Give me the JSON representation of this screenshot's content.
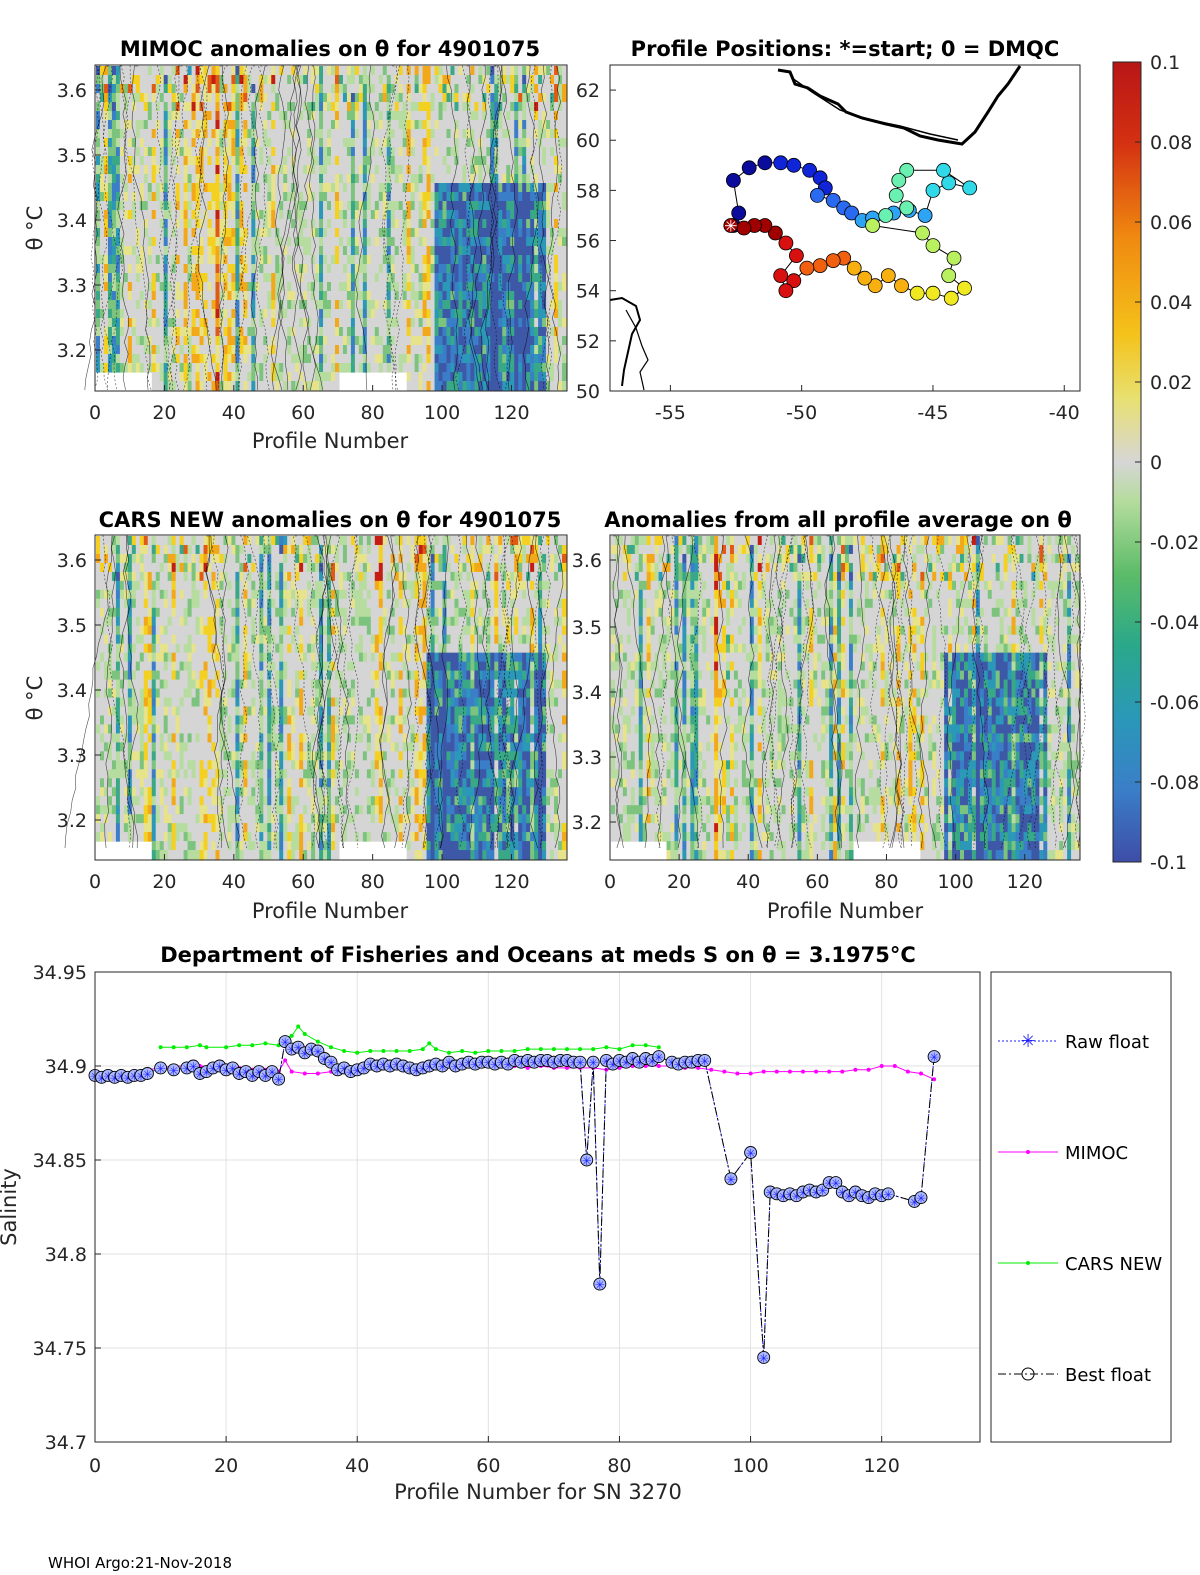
{
  "footer": "WHOI Argo:21-Nov-2018",
  "colors": {
    "mimoc": "#ff00ff",
    "cars": "#00ee00",
    "raw": "#1f1fff",
    "best": "#000000",
    "best_fill": "#aab8ff"
  },
  "colorbar": {
    "ticks": [
      "0.1",
      "0.08",
      "0.06",
      "0.04",
      "0.02",
      "0",
      "-0.02",
      "-0.04",
      "-0.06",
      "-0.08",
      "-0.1"
    ],
    "stops": [
      "#3e4da8",
      "#3a7ec8",
      "#2a98b8",
      "#2aa88a",
      "#5cbc68",
      "#b4dc9c",
      "#d6d6d6",
      "#e8e070",
      "#f4c21a",
      "#f08a10",
      "#d43012",
      "#b81616"
    ]
  },
  "panel_mimoc": {
    "title": "MIMOC anomalies on θ  for 4901075",
    "ylabel": "θ °C",
    "xlabel": "Profile Number",
    "yticks": [
      "3.6",
      "3.5",
      "3.4",
      "3.3",
      "3.2"
    ],
    "xticks": [
      "0",
      "20",
      "40",
      "60",
      "80",
      "100",
      "120"
    ]
  },
  "panel_cars": {
    "title": "CARS NEW anomalies on θ for 4901075",
    "ylabel": "θ °C",
    "xlabel": "Profile Number",
    "yticks": [
      "3.6",
      "3.5",
      "3.4",
      "3.3",
      "3.2"
    ],
    "xticks": [
      "0",
      "20",
      "40",
      "60",
      "80",
      "100",
      "120"
    ]
  },
  "panel_avg": {
    "title": "Anomalies from all profile average on θ",
    "xlabel": "Profile Number",
    "yticks": [
      "3.6",
      "3.5",
      "3.4",
      "3.3",
      "3.2"
    ],
    "xticks": [
      "0",
      "20",
      "40",
      "60",
      "80",
      "100",
      "120"
    ]
  },
  "panel_map": {
    "title": "Profile Positions: *=start; 0 = DMQC",
    "yticks": [
      "62",
      "60",
      "58",
      "56",
      "54",
      "52",
      "50"
    ],
    "xticks": [
      "-55",
      "-50",
      "-45",
      "-40"
    ],
    "track": [
      [
        -52.6,
        56.6
      ],
      [
        -52.4,
        57.1
      ],
      [
        -52.6,
        58.4
      ],
      [
        -52.0,
        58.9
      ],
      [
        -51.4,
        59.1
      ],
      [
        -50.8,
        59.1
      ],
      [
        -50.3,
        59.0
      ],
      [
        -49.7,
        58.8
      ],
      [
        -49.3,
        58.5
      ],
      [
        -49.1,
        58.1
      ],
      [
        -49.4,
        57.8
      ],
      [
        -48.8,
        57.6
      ],
      [
        -48.4,
        57.3
      ],
      [
        -48.1,
        57.1
      ],
      [
        -47.7,
        56.8
      ],
      [
        -47.3,
        56.9
      ],
      [
        -46.5,
        57.1
      ],
      [
        -45.9,
        57.2
      ],
      [
        -45.3,
        57.0
      ],
      [
        -45.0,
        58.0
      ],
      [
        -44.4,
        58.3
      ],
      [
        -43.6,
        58.1
      ],
      [
        -44.6,
        58.8
      ],
      [
        -46.0,
        58.8
      ],
      [
        -46.3,
        58.4
      ],
      [
        -46.4,
        57.8
      ],
      [
        -46.0,
        57.3
      ],
      [
        -46.8,
        57.0
      ],
      [
        -47.3,
        56.6
      ],
      [
        -45.4,
        56.3
      ],
      [
        -45.0,
        55.8
      ],
      [
        -44.2,
        55.3
      ],
      [
        -44.4,
        54.6
      ],
      [
        -43.8,
        54.1
      ],
      [
        -44.3,
        53.7
      ],
      [
        -45.0,
        53.9
      ],
      [
        -45.6,
        53.9
      ],
      [
        -46.2,
        54.2
      ],
      [
        -46.7,
        54.6
      ],
      [
        -47.2,
        54.2
      ],
      [
        -47.6,
        54.5
      ],
      [
        -48.0,
        54.9
      ],
      [
        -48.4,
        55.3
      ],
      [
        -48.8,
        55.2
      ],
      [
        -49.3,
        55.0
      ],
      [
        -49.8,
        54.9
      ],
      [
        -50.3,
        54.4
      ],
      [
        -50.6,
        54.0
      ],
      [
        -50.8,
        54.6
      ],
      [
        -50.2,
        55.4
      ],
      [
        -50.6,
        55.9
      ],
      [
        -51.0,
        56.3
      ],
      [
        -51.4,
        56.6
      ],
      [
        -51.8,
        56.6
      ],
      [
        -52.2,
        56.5
      ],
      [
        -52.7,
        56.6
      ]
    ]
  },
  "chart_data": {
    "type": "line",
    "title": "Department of Fisheries and Oceans at meds S on θ = 3.1975°C",
    "xlabel": "Profile Number for SN 3270",
    "ylabel": "Salinity",
    "xlim": [
      0,
      135
    ],
    "ylim": [
      34.7,
      34.95
    ],
    "xticks": [
      "0",
      "20",
      "40",
      "60",
      "80",
      "100",
      "120"
    ],
    "yticks": [
      "34.95",
      "34.9",
      "34.85",
      "34.8",
      "34.75",
      "34.7"
    ],
    "legend": [
      "Raw float",
      "MIMOC",
      "CARS NEW",
      "Best float"
    ],
    "series": [
      {
        "name": "MIMOC",
        "x": [
          0,
          2,
          4,
          6,
          8,
          10,
          12,
          14,
          16,
          18,
          20,
          22,
          24,
          26,
          28,
          29,
          30,
          32,
          34,
          36,
          38,
          40,
          42,
          44,
          46,
          48,
          50,
          52,
          54,
          56,
          58,
          60,
          62,
          64,
          66,
          68,
          70,
          72,
          74,
          76,
          78,
          80,
          82,
          84,
          86,
          88,
          90,
          92,
          94,
          96,
          98,
          100,
          102,
          104,
          106,
          108,
          110,
          112,
          114,
          116,
          118,
          120,
          122,
          124,
          126,
          128
        ],
        "values": [
          34.896,
          34.896,
          34.897,
          34.897,
          34.898,
          34.899,
          34.9,
          34.9,
          34.9,
          34.9,
          34.9,
          34.899,
          34.898,
          34.898,
          34.897,
          34.903,
          34.897,
          34.896,
          34.896,
          34.897,
          34.898,
          34.899,
          34.899,
          34.9,
          34.9,
          34.9,
          34.899,
          34.9,
          34.9,
          34.9,
          34.901,
          34.9,
          34.9,
          34.9,
          34.899,
          34.9,
          34.899,
          34.899,
          34.899,
          34.899,
          34.898,
          34.899,
          34.9,
          34.9,
          34.9,
          34.9,
          34.899,
          34.899,
          34.898,
          34.897,
          34.896,
          34.896,
          34.897,
          34.897,
          34.897,
          34.897,
          34.897,
          34.897,
          34.897,
          34.898,
          34.898,
          34.9,
          34.9,
          34.897,
          34.896,
          34.893
        ]
      },
      {
        "name": "CARS NEW",
        "x": [
          10,
          12,
          14,
          16,
          17,
          20,
          22,
          24,
          26,
          28,
          29,
          30,
          31,
          32,
          34,
          36,
          38,
          40,
          42,
          44,
          46,
          48,
          50,
          51,
          52,
          54,
          56,
          58,
          60,
          62,
          64,
          66,
          68,
          70,
          72,
          74,
          76,
          78,
          80,
          82,
          84,
          86
        ],
        "values": [
          34.91,
          34.91,
          34.91,
          34.911,
          34.91,
          34.91,
          34.911,
          34.911,
          34.912,
          34.911,
          34.915,
          34.916,
          34.921,
          34.917,
          34.913,
          34.91,
          34.908,
          34.907,
          34.908,
          34.908,
          34.908,
          34.908,
          34.909,
          34.912,
          34.909,
          34.907,
          34.908,
          34.907,
          34.908,
          34.908,
          34.908,
          34.909,
          34.909,
          34.909,
          34.909,
          34.909,
          34.909,
          34.91,
          34.909,
          34.911,
          34.911,
          34.91
        ]
      },
      {
        "name": "Best float",
        "x": [
          0,
          1,
          2,
          3,
          4,
          5,
          6,
          7,
          8,
          10,
          12,
          14,
          15,
          16,
          17,
          18,
          19,
          20,
          21,
          22,
          23,
          24,
          25,
          26,
          27,
          28,
          29,
          30,
          31,
          32,
          33,
          34,
          35,
          36,
          37,
          38,
          39,
          40,
          41,
          42,
          43,
          44,
          45,
          46,
          47,
          48,
          49,
          50,
          51,
          52,
          53,
          54,
          55,
          56,
          57,
          58,
          59,
          60,
          61,
          62,
          63,
          64,
          65,
          66,
          67,
          68,
          69,
          70,
          71,
          72,
          73,
          74,
          75,
          76,
          77,
          78,
          79,
          80,
          81,
          82,
          83,
          84,
          85,
          86,
          88,
          89,
          90,
          91,
          92,
          93,
          97,
          100,
          102,
          103,
          104,
          105,
          106,
          107,
          108,
          109,
          110,
          111,
          112,
          113,
          114,
          115,
          116,
          117,
          118,
          119,
          120,
          121,
          125,
          126,
          128
        ],
        "values": [
          34.895,
          34.894,
          34.895,
          34.894,
          34.895,
          34.894,
          34.895,
          34.895,
          34.896,
          34.899,
          34.898,
          34.899,
          34.9,
          34.896,
          34.897,
          34.899,
          34.9,
          34.898,
          34.899,
          34.896,
          34.897,
          34.895,
          34.897,
          34.895,
          34.897,
          34.893,
          34.913,
          34.909,
          34.91,
          34.907,
          34.909,
          34.908,
          34.904,
          34.902,
          34.898,
          34.899,
          34.897,
          34.898,
          34.899,
          34.901,
          34.9,
          34.901,
          34.9,
          34.901,
          34.9,
          34.899,
          34.898,
          34.899,
          34.9,
          34.901,
          34.9,
          34.902,
          34.9,
          34.901,
          34.902,
          34.901,
          34.902,
          34.902,
          34.901,
          34.902,
          34.901,
          34.903,
          34.902,
          34.903,
          34.902,
          34.903,
          34.903,
          34.902,
          34.903,
          34.903,
          34.902,
          34.902,
          34.85,
          34.902,
          34.784,
          34.903,
          34.901,
          34.903,
          34.902,
          34.904,
          34.902,
          34.904,
          34.903,
          34.905,
          34.902,
          34.901,
          34.902,
          34.902,
          34.903,
          34.903,
          34.84,
          34.854,
          34.745,
          34.833,
          34.832,
          34.831,
          34.832,
          34.831,
          34.833,
          34.834,
          34.833,
          34.834,
          34.838,
          34.838,
          34.833,
          34.831,
          34.833,
          34.831,
          34.83,
          34.832,
          34.831,
          34.832,
          34.828,
          34.83,
          34.905
        ]
      }
    ]
  }
}
